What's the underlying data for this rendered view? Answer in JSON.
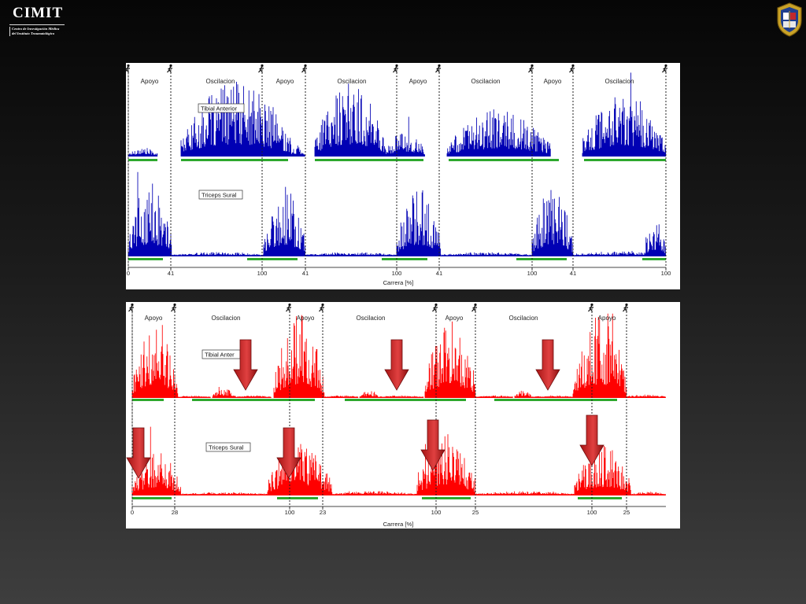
{
  "header": {
    "logo_title": "CIMIT",
    "logo_subtitle_line1": "Centro de Investigación Médica",
    "logo_subtitle_line2": "del Instituto Traumatológico"
  },
  "chart_data": [
    {
      "type": "area",
      "series_color": "#0000b4",
      "phase_labels": [
        "Apoyo",
        "Oscilacion",
        "Apoyo",
        "Oscilacion",
        "Apoyo",
        "Oscilacion",
        "Apoyo",
        "Oscilacion"
      ],
      "muscle_labels": [
        "Tibial Anterior",
        "Triceps Sural"
      ],
      "x_tick_labels": [
        "0",
        "41",
        "100",
        "41",
        "100",
        "41",
        "100",
        "41",
        "100"
      ],
      "xlabel": "Carrera [%]"
    },
    {
      "type": "area",
      "series_color": "#ff0000",
      "phase_labels": [
        "Apoyo",
        "Oscilacion",
        "Apoyo",
        "Oscilacion",
        "Apoyo",
        "Oscilacion",
        "Apoyo"
      ],
      "muscle_labels": [
        "Tibial Anter",
        "Triceps Sural"
      ],
      "x_tick_labels": [
        "0",
        "28",
        "100",
        "23",
        "100",
        "25",
        "100",
        "25"
      ],
      "xlabel": "Carrera [%]"
    }
  ]
}
